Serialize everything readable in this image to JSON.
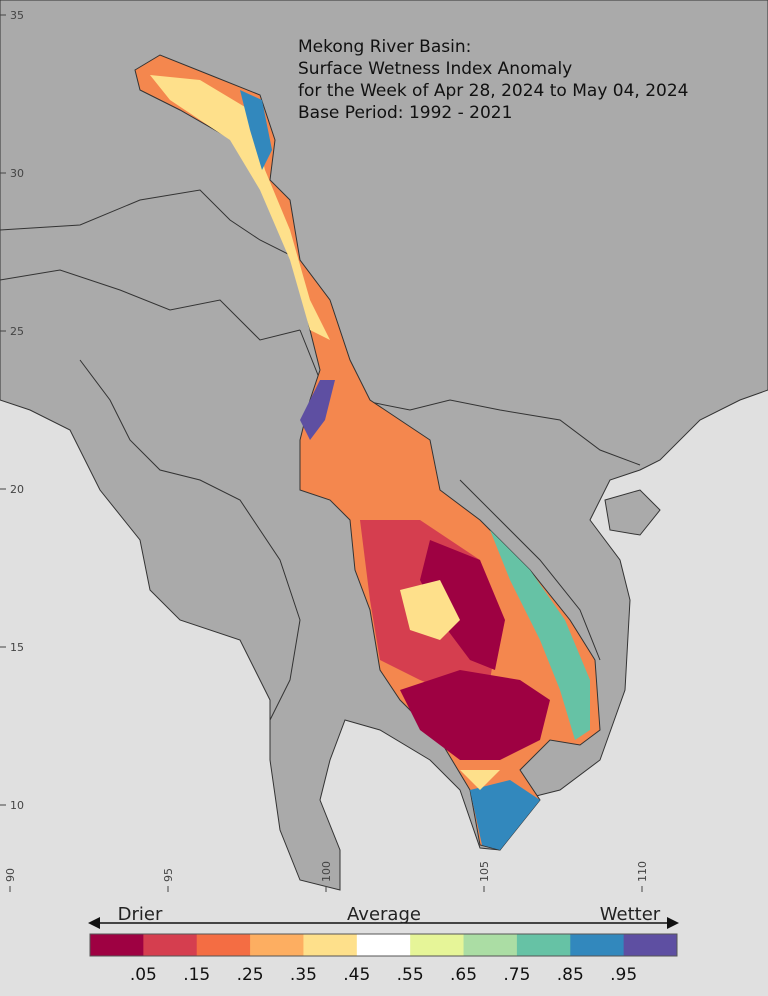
{
  "header": {
    "title_lines": [
      "Mekong River Basin:",
      "Surface Wetness Index Anomaly",
      "for the Week of Apr 28, 2024 to May 04, 2024",
      "Base Period: 1992 - 2021"
    ]
  },
  "map": {
    "lat_ticks": [
      35,
      30,
      25,
      20,
      15,
      10
    ],
    "lon_ticks": [
      90,
      95,
      100,
      105,
      110
    ]
  },
  "legend": {
    "labels": [
      "Drier",
      "Average",
      "Wetter"
    ],
    "colors": [
      "#9e0142",
      "#d53e4f",
      "#f46d43",
      "#fdae61",
      "#fee08b",
      "#ffffff",
      "#e6f598",
      "#abdda4",
      "#66c2a5",
      "#3288bd",
      "#5e4fa2"
    ],
    "ticks": [
      ".05",
      ".15",
      ".25",
      ".35",
      ".45",
      ".55",
      ".65",
      ".75",
      ".85",
      ".95"
    ]
  }
}
